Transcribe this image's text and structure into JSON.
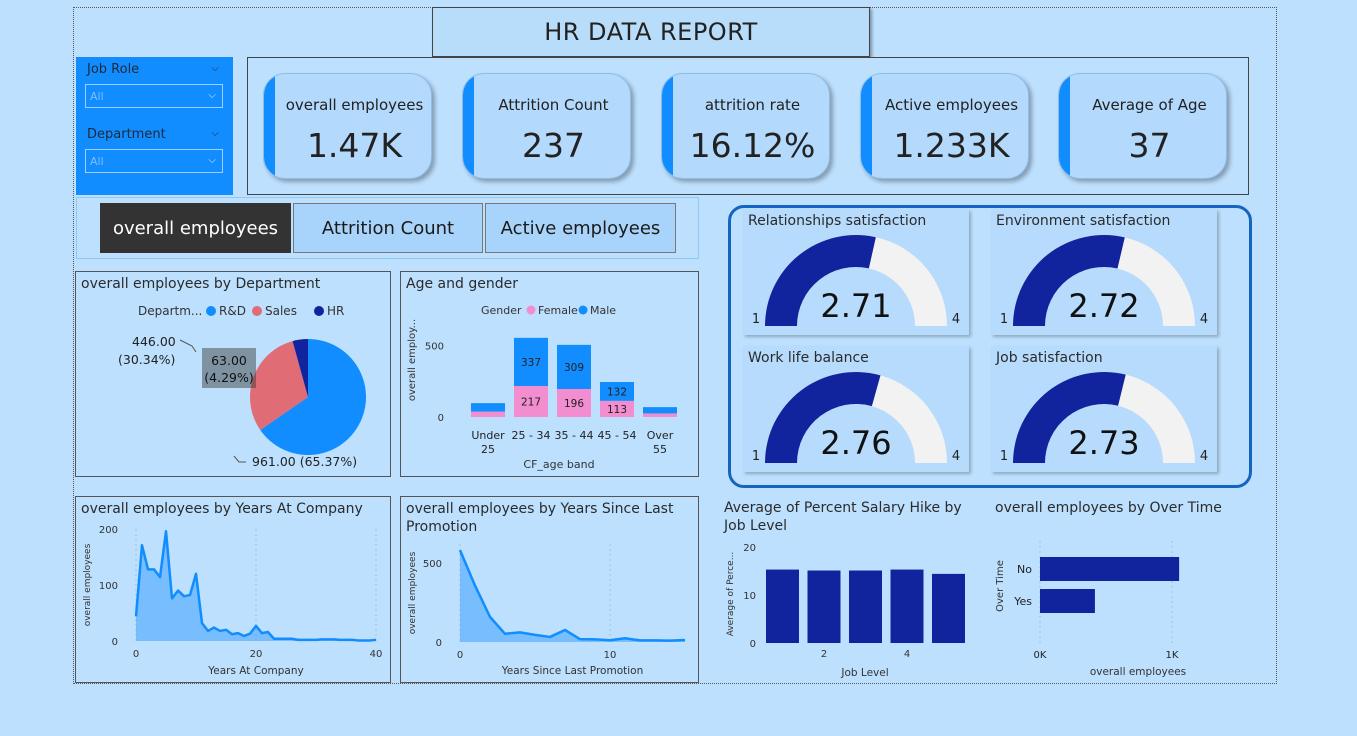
{
  "report_title": "HR DATA REPORT",
  "filters": [
    {
      "label": "Job Role",
      "value": "All"
    },
    {
      "label": "Department",
      "value": "All"
    }
  ],
  "kpis": [
    {
      "label": "overall employees",
      "value": "1.47K"
    },
    {
      "label": "Attrition Count",
      "value": "237"
    },
    {
      "label": "attrition rate",
      "value": "16.12%"
    },
    {
      "label": "Active employees",
      "value": "1.233K"
    },
    {
      "label": "Average of Age",
      "value": "37"
    }
  ],
  "nav_buttons": [
    {
      "label": "overall employees",
      "active": true
    },
    {
      "label": "Attrition Count",
      "active": false
    },
    {
      "label": "Active employees",
      "active": false
    }
  ],
  "colors": {
    "rd": "#118dff",
    "sales": "#e06c75",
    "hr": "#12239e",
    "female": "#f28ecf",
    "male": "#118dff",
    "navy": "#12239e",
    "gauge_empty": "#f2f2f2"
  },
  "chart_data": [
    {
      "id": "dept",
      "type": "pie",
      "title": "overall employees by Department",
      "legend_title": "Departm...",
      "legend_position": "top",
      "slices": [
        {
          "name": "R&D",
          "value": 961,
          "label": "961.00 (65.37%)"
        },
        {
          "name": "Sales",
          "value": 446,
          "label": "446.00\n(30.34%)",
          "label_line1": "446.00",
          "label_line2": "(30.34%)"
        },
        {
          "name": "HR",
          "value": 63,
          "label_line1": "63.00",
          "label_line2": "(4.29%)"
        }
      ]
    },
    {
      "id": "age_gender",
      "type": "bar",
      "stacked": true,
      "title": "Age and gender",
      "legend_title": "Gender",
      "xlabel": "CF_age band",
      "ylabel": "overall employ...",
      "ylim": [
        0,
        560
      ],
      "yticks": [
        0,
        500
      ],
      "categories": [
        "Under 25",
        "25 - 34",
        "35 - 44",
        "45 - 54",
        "Over 55"
      ],
      "category_lines": [
        [
          "Under",
          "25"
        ],
        [
          "25 - 34"
        ],
        [
          "35 - 44"
        ],
        [
          "45 - 54"
        ],
        [
          "Over",
          "55"
        ]
      ],
      "series": [
        {
          "name": "Female",
          "values": [
            38,
            217,
            196,
            113,
            25
          ],
          "labels": [
            "",
            "217",
            "196",
            "113",
            ""
          ]
        },
        {
          "name": "Male",
          "values": [
            59,
            337,
            309,
            132,
            44
          ],
          "labels": [
            "",
            "337",
            "309",
            "132",
            ""
          ]
        }
      ]
    },
    {
      "id": "years_company",
      "type": "area",
      "title": "overall employees by Years At Company",
      "xlabel": "Years At Company",
      "ylabel": "overall employees",
      "xlim": [
        0,
        40
      ],
      "ylim": [
        0,
        200
      ],
      "xticks": [
        0,
        20,
        40
      ],
      "yticks": [
        0,
        100,
        200
      ],
      "x": [
        0,
        1,
        2,
        3,
        4,
        5,
        6,
        7,
        8,
        9,
        10,
        11,
        12,
        13,
        14,
        15,
        16,
        17,
        18,
        19,
        20,
        21,
        22,
        23,
        24,
        25,
        26,
        27,
        28,
        29,
        30,
        31,
        32,
        33,
        34,
        35,
        36,
        37,
        38,
        39,
        40
      ],
      "y": [
        44,
        171,
        128,
        128,
        114,
        196,
        76,
        90,
        80,
        82,
        120,
        32,
        18,
        24,
        18,
        20,
        12,
        14,
        9,
        13,
        27,
        14,
        16,
        4,
        4,
        4,
        4,
        2,
        2,
        2,
        2,
        3,
        3,
        3,
        2,
        2,
        2,
        1,
        1,
        1,
        2
      ]
    },
    {
      "id": "years_promo",
      "type": "area",
      "title": "overall employees by Years Since Last Promotion",
      "xlabel": "Years Since Last Promotion",
      "ylabel": "overall employees",
      "xlim": [
        0,
        15
      ],
      "ylim": [
        0,
        620
      ],
      "xticks": [
        0,
        10
      ],
      "yticks": [
        0,
        500
      ],
      "x": [
        0,
        1,
        2,
        3,
        4,
        5,
        6,
        7,
        8,
        9,
        10,
        11,
        12,
        13,
        14,
        15
      ],
      "y": [
        581,
        357,
        159,
        52,
        61,
        45,
        32,
        76,
        18,
        17,
        11,
        24,
        10,
        10,
        9,
        13
      ]
    },
    {
      "id": "salary_hike",
      "type": "bar",
      "title": "Average of Percent Salary Hike by Job Level",
      "xlabel": "Job Level",
      "ylabel": "Average of Perce...",
      "ylim": [
        0,
        20
      ],
      "yticks": [
        0,
        10,
        20
      ],
      "categories": [
        "1",
        "2",
        "3",
        "4",
        "5"
      ],
      "xtick_labels": [
        "",
        "2",
        "",
        "4",
        ""
      ],
      "values": [
        15.3,
        15.1,
        15.1,
        15.3,
        14.4
      ]
    },
    {
      "id": "over_time",
      "type": "bar",
      "orientation": "horizontal",
      "title": "overall employees by Over Time",
      "xlabel": "overall employees",
      "ylabel": "Over Time",
      "xlim": [
        0,
        1200
      ],
      "xtick_labels": [
        "0K",
        "1K"
      ],
      "xticks": [
        0,
        1000
      ],
      "categories": [
        "No",
        "Yes"
      ],
      "values": [
        1054,
        416
      ]
    }
  ],
  "gauges": [
    {
      "title": "Relationships satisfaction",
      "value": 2.71,
      "display": "2.71",
      "min": 1,
      "max": 4,
      "min_label": "1",
      "max_label": "4"
    },
    {
      "title": "Environment satisfaction",
      "value": 2.72,
      "display": "2.72",
      "min": 1,
      "max": 4,
      "min_label": "1",
      "max_label": "4"
    },
    {
      "title": "Work life balance",
      "value": 2.76,
      "display": "2.76",
      "min": 1,
      "max": 4,
      "min_label": "1",
      "max_label": "4"
    },
    {
      "title": "Job satisfaction",
      "value": 2.73,
      "display": "2.73",
      "min": 1,
      "max": 4,
      "min_label": "1",
      "max_label": "4"
    }
  ]
}
